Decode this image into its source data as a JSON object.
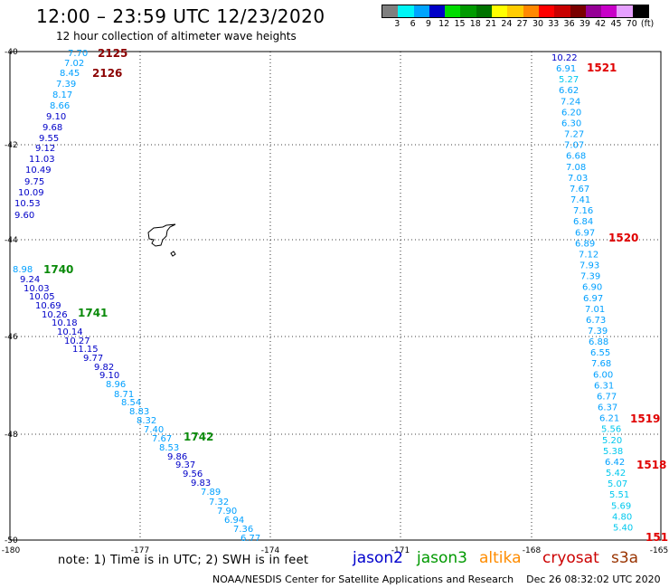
{
  "header": {
    "title": "12:00 – 23:59 UTC 12/23/2020",
    "subtitle": "12 hour collection of altimeter wave heights"
  },
  "legend": {
    "colors": [
      "#7f7f7f",
      "#00f5f5",
      "#00a4ff",
      "#0000c8",
      "#00dc00",
      "#009a00",
      "#007300",
      "#ffff00",
      "#ffcc00",
      "#ff8800",
      "#ff0000",
      "#c80000",
      "#7a0000",
      "#960096",
      "#c800c8",
      "#e6a0ff",
      "#000000"
    ],
    "labels": [
      "3",
      "6",
      "9",
      "12",
      "15",
      "18",
      "21",
      "24",
      "27",
      "30",
      "33",
      "36",
      "39",
      "42",
      "45",
      "70",
      "(ft)"
    ]
  },
  "axes": {
    "lon_labels": [
      "-180",
      "-177",
      "-174",
      "-171",
      "-168",
      "-165"
    ],
    "lat_labels": [
      "-40",
      "-42",
      "-44",
      "-46",
      "-48",
      "-50"
    ]
  },
  "swh_colors": {
    "lt6": "#00c8ee",
    "lt9": "#00a0ff",
    "lt12": "#0000c8"
  },
  "passes": {
    "jason3_west": {
      "color_pass": "#0a8a0a",
      "labels": [
        "1740",
        "1741",
        "1742"
      ],
      "values": [
        "8.98",
        "9.24",
        "10.03",
        "10.05",
        "10.69",
        "10.26",
        "10.18",
        "10.14",
        "10.27",
        "11.15",
        "9.77",
        "9.82",
        "9.10",
        "8.96",
        "8.71",
        "8.54",
        "8.83",
        "8.32",
        "7.40",
        "7.67",
        "8.53",
        "9.86",
        "9.37",
        "9.56",
        "9.83",
        "7.89",
        "7.32",
        "7.90",
        "6.94",
        "7.36",
        "6.77"
      ]
    },
    "cryosat_top": {
      "color_pass": "#8b0000",
      "labels": [
        "2125",
        "2126"
      ],
      "values": [
        "7.70",
        "7.02",
        "8.45",
        "7.39",
        "8.17",
        "8.66",
        "9.10",
        "9.68",
        "9.55",
        "9.12",
        "11.03",
        "10.49",
        "9.75",
        "10.09",
        "10.53",
        "9.60"
      ]
    },
    "s3a_east": {
      "color_pass": "#e00000",
      "labels": [
        "1521",
        "1520",
        "1519",
        "1518",
        "151"
      ],
      "values": [
        "10.22",
        "6.91",
        "5.27",
        "6.62",
        "7.24",
        "6.20",
        "6.30",
        "7.27",
        "7.07",
        "6.68",
        "7.08",
        "7.03",
        "7.67",
        "7.41",
        "7.16",
        "6.84",
        "6.97",
        "6.89",
        "7.12",
        "7.93",
        "7.39",
        "6.90",
        "6.97",
        "7.01",
        "6.73",
        "7.39",
        "6.88",
        "6.55",
        "7.68",
        "6.00",
        "6.31",
        "6.77",
        "6.37",
        "6.21",
        "5.56",
        "5.20",
        "5.38",
        "6.42",
        "5.42",
        "5.07",
        "5.51",
        "5.69",
        "4.80",
        "5.40"
      ]
    }
  },
  "footer": {
    "note": "note:  1) Time is in UTC;  2) SWH is in feet",
    "satellites": [
      {
        "name": "jason2",
        "color": "#0000cc"
      },
      {
        "name": "jason3",
        "color": "#009900"
      },
      {
        "name": "altika",
        "color": "#ff8c00"
      },
      {
        "name": "cryosat",
        "color": "#cc0000"
      },
      {
        "name": "s3a",
        "color": "#993300"
      }
    ],
    "credit": "NOAA/NESDIS Center for Satellite Applications and Research",
    "timestamp": "Dec 26 08:32:02 UTC 2020"
  }
}
